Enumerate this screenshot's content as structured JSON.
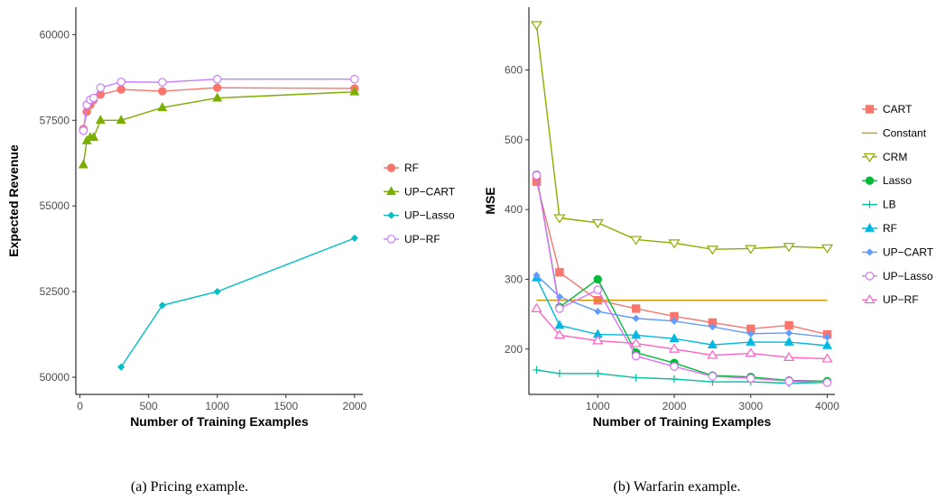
{
  "chart_data": [
    {
      "type": "line",
      "xlabel": "Number of Training Examples",
      "ylabel": "Expected Revenue",
      "caption": "(a) Pricing example.",
      "xlim": [
        -30,
        2060
      ],
      "ylim": [
        49500,
        60800
      ],
      "xticks": [
        0,
        500,
        1000,
        1500,
        2000
      ],
      "yticks": [
        50000,
        52500,
        55000,
        57500,
        60000
      ],
      "xtick_labels": [
        "0",
        "500",
        "1000",
        "1500",
        "2000"
      ],
      "ytick_labels": [
        "50000",
        "52500",
        "55000",
        "57500",
        "60000"
      ],
      "grid": false,
      "legend_position": "right",
      "series": [
        {
          "name": "RF",
          "color": "#F8766D",
          "marker": "circle",
          "points": [
            [
              25,
              57250
            ],
            [
              50,
              57750
            ],
            [
              75,
              57950
            ],
            [
              100,
              58100
            ],
            [
              150,
              58250
            ],
            [
              300,
              58400
            ],
            [
              600,
              58350
            ],
            [
              1000,
              58450
            ],
            [
              2000,
              58430
            ]
          ]
        },
        {
          "name": "UP−CART",
          "color": "#7CAE00",
          "marker": "triangle",
          "points": [
            [
              25,
              56200
            ],
            [
              50,
              56900
            ],
            [
              75,
              57000
            ],
            [
              100,
              57000
            ],
            [
              150,
              57500
            ],
            [
              300,
              57500
            ],
            [
              600,
              57870
            ],
            [
              1000,
              58150
            ],
            [
              2000,
              58330
            ]
          ]
        },
        {
          "name": "UP−Lasso",
          "color": "#00BFC4",
          "marker": "diamond",
          "points": [
            [
              300,
              50300
            ],
            [
              600,
              52100
            ],
            [
              1000,
              52500
            ],
            [
              2000,
              54060
            ]
          ]
        },
        {
          "name": "UP−RF",
          "color": "#C77CFF",
          "marker": "open-circle",
          "points": [
            [
              25,
              57200
            ],
            [
              50,
              57950
            ],
            [
              75,
              58100
            ],
            [
              100,
              58150
            ],
            [
              150,
              58450
            ],
            [
              300,
              58620
            ],
            [
              600,
              58610
            ],
            [
              1000,
              58700
            ],
            [
              2000,
              58700
            ]
          ]
        }
      ]
    },
    {
      "type": "line",
      "xlabel": "Number of Training Examples",
      "ylabel": "MSE",
      "caption": "(b) Warfarin example.",
      "xlim": [
        100,
        4100
      ],
      "ylim": [
        135,
        690
      ],
      "xticks": [
        1000,
        2000,
        3000,
        4000
      ],
      "yticks": [
        200,
        300,
        400,
        500,
        600
      ],
      "xtick_labels": [
        "1000",
        "2000",
        "3000",
        "4000"
      ],
      "ytick_labels": [
        "200",
        "300",
        "400",
        "500",
        "600"
      ],
      "grid": false,
      "legend_position": "right",
      "series": [
        {
          "name": "CART",
          "color": "#F8766D",
          "marker": "square",
          "points": [
            [
              200,
              440
            ],
            [
              500,
              310
            ],
            [
              1000,
              270
            ],
            [
              1500,
              258
            ],
            [
              2000,
              247
            ],
            [
              2500,
              238
            ],
            [
              3000,
              229
            ],
            [
              3500,
              234
            ],
            [
              4000,
              221
            ]
          ]
        },
        {
          "name": "Constant",
          "color": "#D39200",
          "marker": "none",
          "points": [
            [
              200,
              270
            ],
            [
              4000,
              270
            ]
          ]
        },
        {
          "name": "CRM",
          "color": "#93AA00",
          "marker": "open-triangle-down",
          "points": [
            [
              200,
              665
            ],
            [
              500,
              388
            ],
            [
              1000,
              381
            ],
            [
              1500,
              357
            ],
            [
              2000,
              352
            ],
            [
              2500,
              343
            ],
            [
              3000,
              344
            ],
            [
              3500,
              347
            ],
            [
              4000,
              345
            ]
          ]
        },
        {
          "name": "Lasso",
          "color": "#00BA38",
          "marker": "circle",
          "points": [
            [
              200,
              450
            ],
            [
              500,
              260
            ],
            [
              1000,
              300
            ],
            [
              1500,
              195
            ],
            [
              2000,
              180
            ],
            [
              2500,
              162
            ],
            [
              3000,
              160
            ],
            [
              3500,
              155
            ],
            [
              4000,
              154
            ]
          ]
        },
        {
          "name": "LB",
          "color": "#00C19F",
          "marker": "plus",
          "points": [
            [
              200,
              170
            ],
            [
              500,
              165
            ],
            [
              1000,
              165
            ],
            [
              1500,
              159
            ],
            [
              2000,
              157
            ],
            [
              2500,
              153
            ],
            [
              3000,
              153
            ],
            [
              3500,
              151
            ],
            [
              4000,
              152
            ]
          ]
        },
        {
          "name": "RF",
          "color": "#00B9E3",
          "marker": "triangle",
          "points": [
            [
              200,
              302
            ],
            [
              500,
              234
            ],
            [
              1000,
              221
            ],
            [
              1500,
              220
            ],
            [
              2000,
              215
            ],
            [
              2500,
              206
            ],
            [
              3000,
              210
            ],
            [
              3500,
              210
            ],
            [
              4000,
              205
            ]
          ]
        },
        {
          "name": "UP−CART",
          "color": "#619CFF",
          "marker": "diamond",
          "points": [
            [
              200,
              306
            ],
            [
              500,
              275
            ],
            [
              1000,
              254
            ],
            [
              1500,
              244
            ],
            [
              2000,
              240
            ],
            [
              2500,
              232
            ],
            [
              3000,
              222
            ],
            [
              3500,
              223
            ],
            [
              4000,
              217
            ]
          ]
        },
        {
          "name": "UP−Lasso",
          "color": "#DB72FB",
          "marker": "open-circle",
          "points": [
            [
              200,
              449
            ],
            [
              500,
              258
            ],
            [
              1000,
              285
            ],
            [
              1500,
              190
            ],
            [
              2000,
              175
            ],
            [
              2500,
              161
            ],
            [
              3000,
              158
            ],
            [
              3500,
              154
            ],
            [
              4000,
              152
            ]
          ]
        },
        {
          "name": "UP−RF",
          "color": "#FF61C3",
          "marker": "open-triangle",
          "points": [
            [
              200,
              258
            ],
            [
              500,
              220
            ],
            [
              1000,
              212
            ],
            [
              1500,
              208
            ],
            [
              2000,
              200
            ],
            [
              2500,
              191
            ],
            [
              3000,
              194
            ],
            [
              3500,
              188
            ],
            [
              4000,
              186
            ]
          ]
        }
      ]
    }
  ]
}
